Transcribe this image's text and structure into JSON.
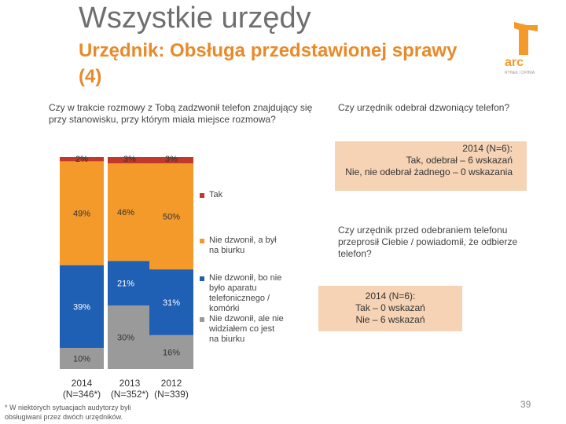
{
  "header": {
    "title": "Wszystkie urzędy",
    "subtitle": "Urzędnik: Obsługa przedstawionej sprawy (4)",
    "logo_text": "arc",
    "logo_subtext": "RYNEK I OPINIA"
  },
  "questions": {
    "main": "Czy w trakcie rozmowy z Tobą zadzwonił telefon znajdujący się przy stanowisku, przy którym miała miejsce rozmowa?",
    "answered": "Czy urzędnik odebrał dzwoniący telefon?",
    "apologized": "Czy urzędnik przed odebraniem telefonu przeprosił Ciebie / powiadomił, że odbierze telefon?"
  },
  "box1": {
    "lines": [
      "2014 (N=6):",
      "Tak, odebrał – 6 wskazań",
      "Nie, nie odebrał żadnego – 0 wskazania"
    ]
  },
  "box2": {
    "lines": [
      "2014 (N=6):",
      "Tak – 0 wskazań",
      "Nie – 6 wskazań"
    ]
  },
  "chart_data": {
    "type": "bar",
    "stacked": true,
    "normalized": true,
    "categories": [
      "2014",
      "2013",
      "2012"
    ],
    "category_subtitles": [
      "(N=346*)",
      "(N=352*)",
      "(N=339)"
    ],
    "series": [
      {
        "name": "Nie dzwonił, ale nie widziałem co jest na biurku",
        "color": "#9a9a9a",
        "values": [
          10,
          30,
          16
        ]
      },
      {
        "name": "Nie dzwonił, bo nie było aparatu telefonicznego / komórki",
        "color": "#1f5fb4",
        "values": [
          39,
          21,
          31
        ]
      },
      {
        "name": "Nie dzwonił, a był na biurku",
        "color": "#f39a2b",
        "values": [
          49,
          46,
          50
        ]
      },
      {
        "name": "Tak",
        "color": "#c0392b",
        "values": [
          2,
          3,
          3
        ]
      }
    ],
    "value_labels": [
      [
        "10%",
        "39%",
        "49%",
        "2%"
      ],
      [
        "30%",
        "21%",
        "46%",
        "3%"
      ],
      [
        "16%",
        "31%",
        "50%",
        "3%"
      ]
    ],
    "ylim": [
      0,
      100
    ],
    "legend_order": [
      "Tak",
      "Nie dzwonił, a był na biurku",
      "Nie dzwonił, bo nie było aparatu telefonicznego / komórki",
      "Nie dzwonił, ale nie widziałem co jest na biurku"
    ],
    "legend_display": [
      "Tak",
      "Nie dzwonił, a był na biurku",
      "Nie dzwonił, bo nie było aparatu telefonicznego / komórki",
      "Nie dzwonił, ale nie widziałem co jest na biurku"
    ]
  },
  "footnote": "* W niektórych sytuacjach audytorzy byli obsługiwani przez dwóch urzędników.",
  "page_number": "39"
}
